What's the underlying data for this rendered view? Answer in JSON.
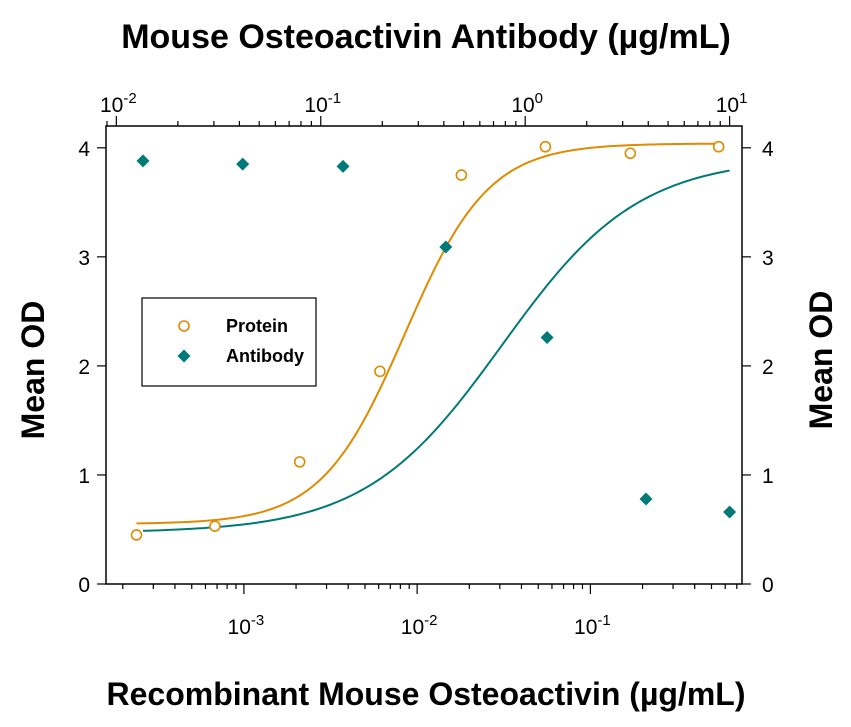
{
  "chart_data": {
    "type": "scatter",
    "title": "Mouse Osteoactivin Antibody (µg/mL)",
    "xlabel": "Recombinant Mouse Osteoactivin (µg/mL)",
    "ylabel_left": "Mean OD",
    "ylabel_right": "Mean OD",
    "x_bottom": {
      "scale": "log",
      "range": [
        0.00016,
        0.75
      ],
      "tick_labels": [
        {
          "value": 0.001,
          "base": "10",
          "exp": "-3"
        },
        {
          "value": 0.01,
          "base": "10",
          "exp": "-2"
        },
        {
          "value": 0.1,
          "base": "10",
          "exp": "-1"
        }
      ]
    },
    "x_top": {
      "scale": "log",
      "range": [
        0.0089,
        11.5
      ],
      "tick_labels": [
        {
          "value": 0.01,
          "base": "10",
          "exp": "-2"
        },
        {
          "value": 0.1,
          "base": "10",
          "exp": "-1"
        },
        {
          "value": 1,
          "base": "10",
          "exp": "0"
        },
        {
          "value": 10,
          "base": "10",
          "exp": "1"
        }
      ]
    },
    "y_left": {
      "range": [
        0,
        4.2
      ],
      "ticks": [
        "0",
        "1",
        "2",
        "3",
        "4"
      ]
    },
    "y_right": {
      "range": [
        0,
        4.2
      ],
      "ticks": [
        "0",
        "1",
        "2",
        "3",
        "4"
      ]
    },
    "grid": false,
    "legend_position": "center-left",
    "series": [
      {
        "name": "Protein",
        "axis": "bottom",
        "marker": "open-circle",
        "color": "#e08a00",
        "x": [
          0.00024,
          0.00068,
          0.0021,
          0.0061,
          0.018,
          0.055,
          0.17,
          0.55
        ],
        "y": [
          0.45,
          0.53,
          1.12,
          1.95,
          3.75,
          4.01,
          3.95,
          4.01
        ],
        "fit": {
          "bottom": 0.55,
          "top": 4.04,
          "ec50": 0.0085,
          "hill": 1.8
        }
      },
      {
        "name": "Antibody",
        "axis": "top",
        "marker": "diamond",
        "color": "#007a78",
        "x": [
          0.0135,
          0.0415,
          0.1285,
          0.409,
          1.28,
          3.9,
          10.0
        ],
        "y": [
          3.88,
          3.85,
          3.83,
          3.09,
          2.26,
          0.78,
          0.66
        ],
        "fit": {
          "bottom": 0.47,
          "top": 3.91,
          "ec50": 0.77,
          "hill": 1.3
        }
      }
    ]
  }
}
